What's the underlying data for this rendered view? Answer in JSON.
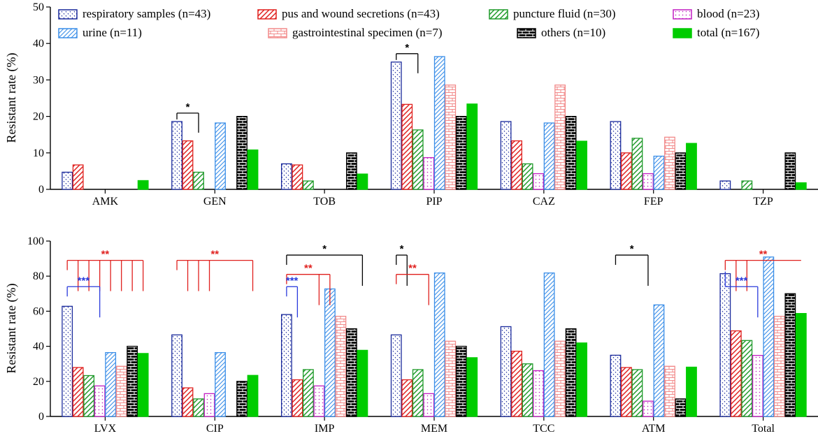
{
  "legend": [
    {
      "key": "resp",
      "label": "respiratory samples (n=43)",
      "color": "#1a2a9c",
      "pattern": "dots"
    },
    {
      "key": "urine",
      "label": "urine (n=11)",
      "color": "#3a8ee8",
      "pattern": "diag-left"
    },
    {
      "key": "pus",
      "label": "pus and wound secretions (n=43)",
      "color": "#e0201e",
      "pattern": "diag-right"
    },
    {
      "key": "gi",
      "label": "gastrointestinal specimen (n=7)",
      "color": "#f28a8a",
      "pattern": "brick"
    },
    {
      "key": "punct",
      "label": "puncture fluid (n=30)",
      "color": "#1f9a2a",
      "pattern": "diag-right"
    },
    {
      "key": "others",
      "label": "others (n=10)",
      "color": "#000000",
      "pattern": "blackbrick"
    },
    {
      "key": "blood",
      "label": "blood (n=23)",
      "color": "#c21ec2",
      "pattern": "dots2"
    },
    {
      "key": "total",
      "label": "total (n=167)",
      "color": "#00cc00",
      "pattern": "solid"
    }
  ],
  "chart_data": [
    {
      "type": "bar",
      "ylabel": "Resistant rate (%)",
      "ylim": [
        0,
        50
      ],
      "yticks": [
        0,
        10,
        20,
        30,
        40,
        50
      ],
      "categories": [
        "AMK",
        "GEN",
        "TOB",
        "PIP",
        "CAZ",
        "FEP",
        "TZP"
      ],
      "series": [
        {
          "name": "respiratory samples (n=43)",
          "values": [
            4.7,
            18.6,
            7.0,
            34.9,
            18.6,
            18.6,
            2.3
          ]
        },
        {
          "name": "pus and wound secretions (n=43)",
          "values": [
            6.7,
            13.3,
            6.7,
            23.3,
            13.3,
            10.0,
            0
          ]
        },
        {
          "name": "puncture fluid (n=30)",
          "values": [
            0,
            4.7,
            2.3,
            16.3,
            7.0,
            14.0,
            2.3
          ]
        },
        {
          "name": "blood (n=23)",
          "values": [
            0,
            0,
            0,
            8.7,
            4.3,
            4.3,
            0
          ]
        },
        {
          "name": "urine (n=11)",
          "values": [
            0,
            18.2,
            0,
            36.4,
            18.2,
            9.1,
            0
          ]
        },
        {
          "name": "gastrointestinal specimen (n=7)",
          "values": [
            0,
            0,
            0,
            28.6,
            28.6,
            14.3,
            0
          ]
        },
        {
          "name": "others (n=10)",
          "values": [
            0,
            20.0,
            10.0,
            20.0,
            20.0,
            10.0,
            10.0
          ]
        },
        {
          "name": "total (n=167)",
          "values": [
            2.4,
            10.8,
            4.2,
            23.4,
            13.2,
            12.6,
            1.8
          ]
        }
      ],
      "annotations": [
        {
          "label": "*",
          "color": "#000000",
          "category": 1,
          "from": 0,
          "to": 2
        },
        {
          "label": "*",
          "color": "#000000",
          "category": 3,
          "from": 0,
          "to": 2
        }
      ]
    },
    {
      "type": "bar",
      "ylabel": "Resistant rate (%)",
      "ylim": [
        0,
        100
      ],
      "yticks": [
        0,
        20,
        40,
        60,
        80,
        100
      ],
      "categories": [
        "LVX",
        "CIP",
        "IMP",
        "MEM",
        "TCC",
        "ATM",
        "Total"
      ],
      "series": [
        {
          "name": "respiratory samples (n=43)",
          "values": [
            62.8,
            46.5,
            58.1,
            46.5,
            51.2,
            34.9,
            81.4
          ]
        },
        {
          "name": "pus and wound secretions (n=43)",
          "values": [
            27.9,
            16.3,
            20.9,
            20.9,
            37.2,
            27.9,
            48.8
          ]
        },
        {
          "name": "puncture fluid (n=30)",
          "values": [
            23.3,
            10.0,
            26.7,
            26.7,
            30.0,
            26.7,
            43.3
          ]
        },
        {
          "name": "blood (n=23)",
          "values": [
            17.4,
            13.0,
            17.4,
            13.0,
            26.1,
            8.7,
            34.8
          ]
        },
        {
          "name": "urine (n=11)",
          "values": [
            36.4,
            36.4,
            72.7,
            81.8,
            81.8,
            63.6,
            90.9
          ]
        },
        {
          "name": "gastrointestinal specimen (n=7)",
          "values": [
            28.6,
            0,
            57.1,
            42.9,
            42.9,
            28.6,
            57.1
          ]
        },
        {
          "name": "others (n=10)",
          "values": [
            40.0,
            20.0,
            50.0,
            40.0,
            50.0,
            10.0,
            70.0
          ]
        },
        {
          "name": "total (n=167)",
          "values": [
            35.9,
            23.4,
            37.7,
            33.5,
            41.9,
            28.1,
            58.7
          ]
        }
      ],
      "annotations": [
        {
          "label": "**",
          "color": "#e0201e",
          "category": 0,
          "from": 0,
          "to": 7,
          "drops": [
            1,
            2,
            3,
            4,
            5,
            6,
            7
          ],
          "level": "high"
        },
        {
          "label": "***",
          "color": "#2a3adc",
          "category": 0,
          "from": 0,
          "to": 3,
          "level": "low"
        },
        {
          "label": "**",
          "color": "#e0201e",
          "category": 1,
          "from": 0,
          "to": 7,
          "drops": [
            1,
            2,
            3,
            7
          ],
          "level": "high"
        },
        {
          "label": "*",
          "color": "#000000",
          "category": 2,
          "from": 0,
          "to": 7,
          "level": "top"
        },
        {
          "label": "**",
          "color": "#e0201e",
          "category": 2,
          "from": 0,
          "to": 4,
          "drops": [
            3,
            4
          ],
          "level": "mid"
        },
        {
          "label": "***",
          "color": "#2a3adc",
          "category": 2,
          "from": 0,
          "to": 1,
          "level": "low"
        },
        {
          "label": "*",
          "color": "#000000",
          "category": 3,
          "from": 0,
          "to": 1,
          "drops": [
            1
          ],
          "level": "top"
        },
        {
          "label": "**",
          "color": "#e0201e",
          "category": 3,
          "from": 0,
          "to": 3,
          "level": "mid"
        },
        {
          "label": "*",
          "color": "#000000",
          "category": 5,
          "from": 0,
          "to": 3,
          "level": "top"
        },
        {
          "label": "**",
          "color": "#e0201e",
          "category": 6,
          "from": 0,
          "to": 7,
          "drops": [
            1,
            2
          ],
          "level": "high"
        },
        {
          "label": "***",
          "color": "#2a3adc",
          "category": 6,
          "from": 0,
          "to": 3,
          "level": "low"
        }
      ]
    }
  ]
}
